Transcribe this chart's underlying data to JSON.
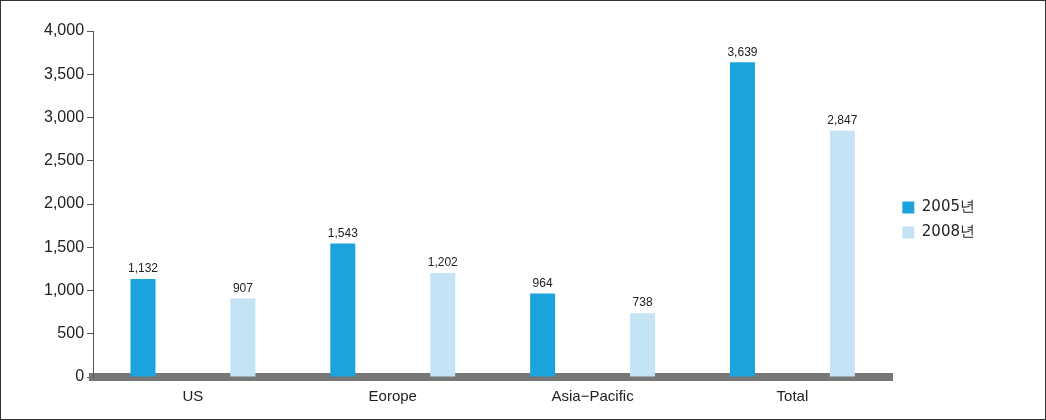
{
  "chart_data": {
    "type": "bar",
    "categories": [
      "US",
      "Eorope",
      "Asia−Pacific",
      "Total"
    ],
    "series": [
      {
        "name": "2005년",
        "color": "#1aa3dc",
        "values": [
          1132,
          1543,
          964,
          3639
        ],
        "value_labels": [
          "1,132",
          "1,543",
          "964",
          "3,639"
        ]
      },
      {
        "name": "2008년",
        "color": "#c4e4f5",
        "values": [
          907,
          1202,
          738,
          2847
        ],
        "value_labels": [
          "907",
          "1,202",
          "738",
          "2,847"
        ]
      }
    ],
    "ylim": [
      0,
      4000
    ],
    "yticks": [
      0,
      500,
      {
        "value": 1000,
        "label": "1,000"
      },
      {
        "value": 1500,
        "label": "1,500"
      },
      {
        "value": 2000,
        "label": "2,000"
      },
      {
        "value": 2500,
        "label": "2,500"
      },
      {
        "value": 3000,
        "label": "3,000"
      },
      {
        "value": 3500,
        "label": "3,500"
      },
      {
        "value": 4000,
        "label": "4,000"
      }
    ],
    "grid": false,
    "legend": "right"
  }
}
